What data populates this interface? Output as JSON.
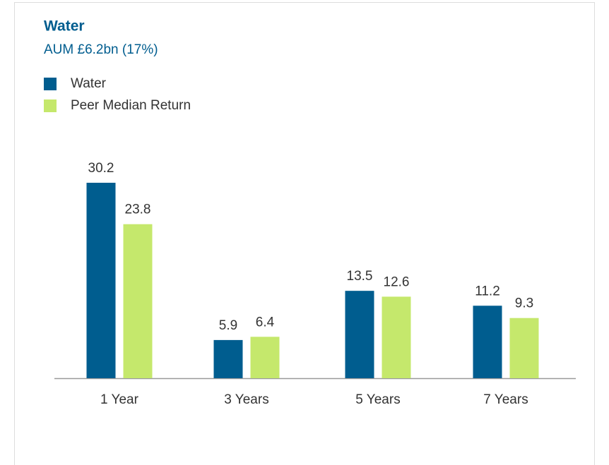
{
  "chart_data": {
    "type": "bar",
    "title": "Water",
    "subtitle": "AUM £6.2bn (17%)",
    "categories": [
      "1 Year",
      "3 Years",
      "5 Years",
      "7 Years"
    ],
    "series": [
      {
        "name": "Water",
        "color": "#005d8f",
        "values": [
          30.2,
          5.9,
          13.5,
          11.2
        ]
      },
      {
        "name": "Peer Median Return",
        "color": "#c5e86c",
        "values": [
          23.8,
          6.4,
          12.6,
          9.3
        ]
      }
    ]
  }
}
